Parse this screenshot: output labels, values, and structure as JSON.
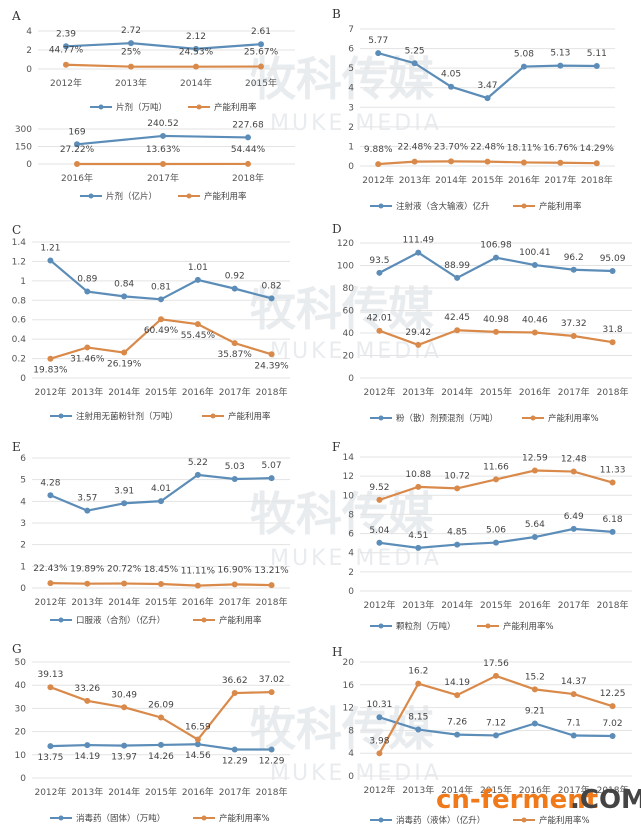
{
  "colors": {
    "blue": "#5b8db8",
    "orange": "#d98a4a",
    "grid": "#e3e3e3",
    "brand_orange": "#f07a1a",
    "brand_dark": "#444444"
  },
  "watermark": {
    "text_cn": "牧科传媒",
    "text_en": "MUKE MEDIA"
  },
  "brand_logo": {
    "part1": "cn-ferment",
    "part2": ".COM"
  },
  "chart_data": [
    {
      "panel": "A",
      "type": "line",
      "categories": [
        "2012年",
        "2013年",
        "2014年",
        "2015年"
      ],
      "yticks": [
        "0",
        "2",
        "4"
      ],
      "ylim": [
        0,
        4
      ],
      "series": [
        {
          "name": "片剂（万吨）",
          "color": "blue",
          "values": [
            2.39,
            2.72,
            2.12,
            2.61
          ],
          "labels": [
            "2.39",
            "2.72",
            "2.12",
            "2.61"
          ]
        },
        {
          "name": "产能利用率",
          "color": "orange",
          "values": [
            0.4477,
            0.25,
            0.2453,
            0.2567
          ],
          "labels": [
            "44.77%",
            "25%",
            "24.53%",
            "25.67%"
          ]
        }
      ]
    },
    {
      "panel": "",
      "type": "line",
      "categories": [
        "2016年",
        "2017年",
        "2018年"
      ],
      "yticks": [
        "0",
        "150",
        "300"
      ],
      "ylim": [
        0,
        300
      ],
      "series": [
        {
          "name": "片剂（亿片）",
          "color": "blue",
          "values": [
            169,
            240.52,
            227.68
          ],
          "labels": [
            "169",
            "240.52",
            "227.68"
          ]
        },
        {
          "name": "产能利用率",
          "color": "orange",
          "values": [
            0.2722,
            0.1363,
            0.5444
          ],
          "labels": [
            "27.22%",
            "13.63%",
            "54.44%"
          ]
        }
      ]
    },
    {
      "panel": "B",
      "type": "line",
      "categories": [
        "2012年",
        "2013年",
        "2014年",
        "2015年",
        "2016年",
        "2017年",
        "2018年"
      ],
      "yticks": [
        "0",
        "1",
        "2",
        "3",
        "4",
        "5",
        "6",
        "7"
      ],
      "ylim": [
        0,
        7
      ],
      "series": [
        {
          "name": "注射液（含大输液）亿升",
          "color": "blue",
          "values": [
            5.77,
            5.25,
            4.05,
            3.47,
            5.08,
            5.13,
            5.11
          ],
          "labels": [
            "5.77",
            "5.25",
            "4.05",
            "3.47",
            "5.08",
            "5.13",
            "5.11"
          ]
        },
        {
          "name": "产能利用率",
          "color": "orange",
          "values": [
            0.0988,
            0.2248,
            0.237,
            0.2248,
            0.1811,
            0.1676,
            0.1429
          ],
          "labels": [
            "9.88%",
            "22.48%",
            "23.70%",
            "22.48%",
            "18.11%",
            "16.76%",
            "14.29%"
          ]
        }
      ]
    },
    {
      "panel": "C",
      "type": "line",
      "categories": [
        "2012年",
        "2013年",
        "2014年",
        "2015年",
        "2016年",
        "2017年",
        "2018年"
      ],
      "yticks": [
        "0",
        "0.2",
        "0.4",
        "0.6",
        "0.8",
        "1",
        "1.2",
        "1.4"
      ],
      "ylim": [
        0,
        1.4
      ],
      "series": [
        {
          "name": "注射用无菌粉针剂（万吨）",
          "color": "blue",
          "values": [
            1.21,
            0.89,
            0.84,
            0.81,
            1.01,
            0.92,
            0.82
          ],
          "labels": [
            "1.21",
            "0.89",
            "0.84",
            "0.81",
            "1.01",
            "0.92",
            "0.82"
          ]
        },
        {
          "name": "产能利用率",
          "color": "orange",
          "values": [
            0.1983,
            0.3146,
            0.2619,
            0.6049,
            0.5545,
            0.3587,
            0.2439
          ],
          "labels": [
            "19.83%",
            "31.46%",
            "26.19%",
            "60.49%",
            "55.45%",
            "35.87%",
            "24.39%"
          ]
        }
      ]
    },
    {
      "panel": "D",
      "type": "line",
      "categories": [
        "2012年",
        "2013年",
        "2014年",
        "2015年",
        "2016年",
        "2017年",
        "2018年"
      ],
      "yticks": [
        "0",
        "20",
        "40",
        "60",
        "80",
        "100",
        "120"
      ],
      "ylim": [
        0,
        120
      ],
      "series": [
        {
          "name": "粉（散）剂预混剂（万吨）",
          "color": "blue",
          "values": [
            93.5,
            111.49,
            88.99,
            106.98,
            100.41,
            96.2,
            95.09
          ],
          "labels": [
            "93.5",
            "111.49",
            "88.99",
            "106.98",
            "100.41",
            "96.2",
            "95.09"
          ]
        },
        {
          "name": "产能利用率%",
          "color": "orange",
          "values": [
            42.01,
            29.42,
            42.45,
            40.98,
            40.46,
            37.32,
            31.8
          ],
          "labels": [
            "42.01",
            "29.42",
            "42.45",
            "40.98",
            "40.46",
            "37.32",
            "31.8"
          ]
        }
      ]
    },
    {
      "panel": "E",
      "type": "line",
      "categories": [
        "2012年",
        "2013年",
        "2014年",
        "2015年",
        "2016年",
        "2017年",
        "2018年"
      ],
      "yticks": [
        "0",
        "1",
        "2",
        "3",
        "4",
        "5",
        "6"
      ],
      "ylim": [
        0,
        6
      ],
      "series": [
        {
          "name": "口服液（合剂）（亿升）",
          "color": "blue",
          "values": [
            4.28,
            3.57,
            3.91,
            4.01,
            5.22,
            5.03,
            5.07
          ],
          "labels": [
            "4.28",
            "3.57",
            "3.91",
            "4.01",
            "5.22",
            "5.03",
            "5.07"
          ]
        },
        {
          "name": "产能利用率",
          "color": "orange",
          "values": [
            0.2243,
            0.1989,
            0.2072,
            0.1845,
            0.1111,
            0.169,
            0.1321
          ],
          "labels": [
            "22.43%",
            "19.89%",
            "20.72%",
            "18.45%",
            "11.11%",
            "16.90%",
            "13.21%"
          ]
        }
      ]
    },
    {
      "panel": "F",
      "type": "line",
      "categories": [
        "2012年",
        "2013年",
        "2014年",
        "2015年",
        "2016年",
        "2017年",
        "2018年"
      ],
      "yticks": [
        "0",
        "2",
        "4",
        "6",
        "8",
        "10",
        "12",
        "14"
      ],
      "ylim": [
        0,
        14
      ],
      "series": [
        {
          "name": "颗粒剂（万吨）",
          "color": "blue",
          "values": [
            5.04,
            4.51,
            4.85,
            5.06,
            5.64,
            6.49,
            6.18
          ],
          "labels": [
            "5.04",
            "4.51",
            "4.85",
            "5.06",
            "5.64",
            "6.49",
            "6.18"
          ]
        },
        {
          "name": "产能利用率%",
          "color": "orange",
          "values": [
            9.52,
            10.88,
            10.72,
            11.66,
            12.59,
            12.48,
            11.33
          ],
          "labels": [
            "9.52",
            "10.88",
            "10.72",
            "11.66",
            "12.59",
            "12.48",
            "11.33"
          ]
        }
      ]
    },
    {
      "panel": "G",
      "type": "line",
      "categories": [
        "2012年",
        "2013年",
        "2014年",
        "2015年",
        "2016年",
        "2017年",
        "2018年"
      ],
      "yticks": [
        "0",
        "10",
        "20",
        "30",
        "40",
        "50"
      ],
      "ylim": [
        0,
        50
      ],
      "series": [
        {
          "name": "消毒药（固体）（万吨）",
          "color": "blue",
          "values": [
            13.75,
            14.19,
            13.97,
            14.26,
            14.56,
            12.29,
            12.29
          ],
          "labels": [
            "13.75",
            "14.19",
            "13.97",
            "14.26",
            "14.56",
            "12.29",
            "12.29"
          ]
        },
        {
          "name": "产能利用率%",
          "color": "orange",
          "values": [
            39.13,
            33.26,
            30.49,
            26.09,
            16.59,
            36.62,
            37.02
          ],
          "labels": [
            "39.13",
            "33.26",
            "30.49",
            "26.09",
            "16.59",
            "36.62",
            "37.02"
          ]
        }
      ]
    },
    {
      "panel": "H",
      "type": "line",
      "categories": [
        "2012年",
        "2013年",
        "2014年",
        "2015年",
        "2016年",
        "2017年",
        "2018年"
      ],
      "yticks": [
        "0",
        "4",
        "8",
        "12",
        "16",
        "20"
      ],
      "ylim": [
        0,
        20
      ],
      "series": [
        {
          "name": "消毒药（液体）（亿升）",
          "color": "blue",
          "values": [
            10.31,
            8.15,
            7.26,
            7.12,
            9.21,
            7.1,
            7.02
          ],
          "labels": [
            "10.31",
            "8.15",
            "7.26",
            "7.12",
            "9.21",
            "7.1",
            "7.02"
          ]
        },
        {
          "name": "产能利用率%",
          "color": "orange",
          "values": [
            3.98,
            16.2,
            14.19,
            17.56,
            15.2,
            14.37,
            12.25
          ],
          "labels": [
            "3.98",
            "16.2",
            "14.19",
            "17.56",
            "15.2",
            "14.37",
            "12.25"
          ]
        }
      ]
    }
  ]
}
